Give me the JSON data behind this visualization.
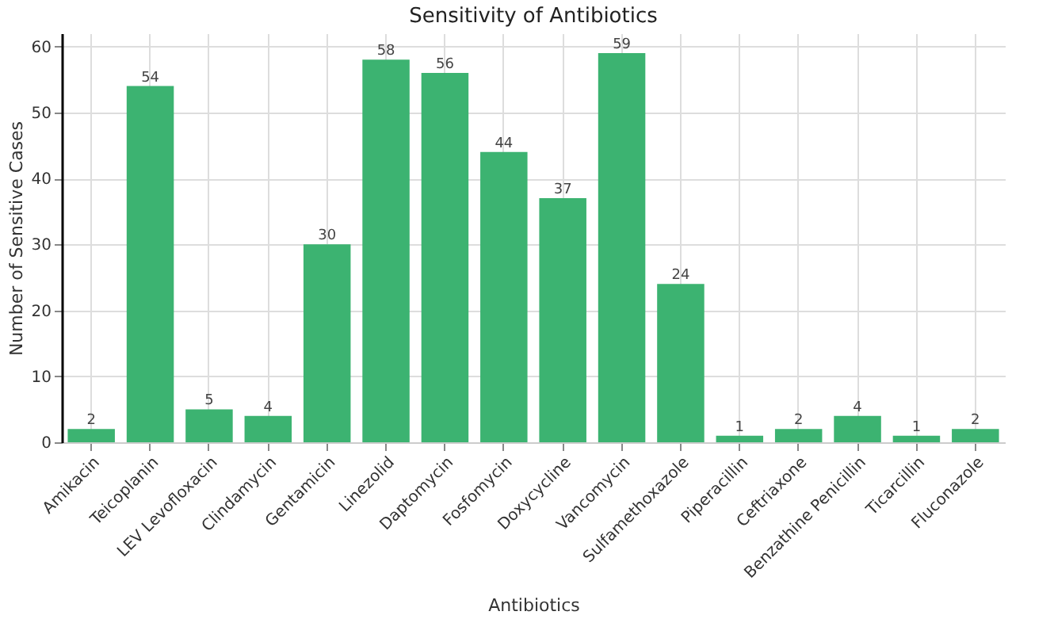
{
  "chart_data": {
    "type": "bar",
    "title": "Sensitivity of Antibiotics",
    "xlabel": "Antibiotics",
    "ylabel": "Number of Sensitive Cases",
    "categories": [
      "Amikacin",
      "Teicoplanin",
      "LEV Levofloxacin",
      "Clindamycin",
      "Gentamicin",
      "Linezolid",
      "Daptomycin",
      "Fosfomycin",
      "Doxycycline",
      "Vancomycin",
      "Sulfamethoxazole",
      "Piperacillin",
      "Ceftriaxone",
      "Benzathine Penicillin",
      "Ticarcillin",
      "Fluconazole"
    ],
    "values": [
      2,
      54,
      5,
      4,
      30,
      58,
      56,
      44,
      37,
      59,
      24,
      1,
      2,
      4,
      1,
      2
    ],
    "color": "#3cb371",
    "ylim": [
      0,
      62
    ],
    "yticks": [
      0,
      10,
      20,
      30,
      40,
      50,
      60
    ],
    "grid": true,
    "data_labels": true
  }
}
